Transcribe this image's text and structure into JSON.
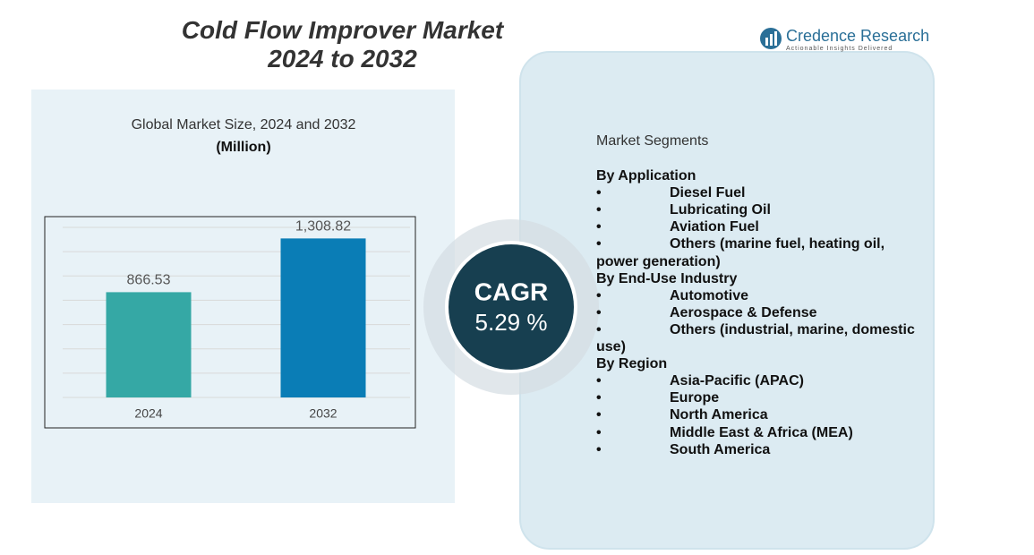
{
  "header": {
    "title_line1": "Cold Flow Improver Market",
    "title_line2": "2024 to 2032",
    "logo_name": "Credence Research",
    "logo_tagline": "Actionable Insights Delivered"
  },
  "chart_data": {
    "type": "bar",
    "title": "Global Market Size,  2024 and 2032",
    "subtitle": "(Million)",
    "categories": [
      "2024",
      "2032"
    ],
    "values": [
      866.53,
      1308.82
    ],
    "value_labels": [
      "866.53",
      "1,308.82"
    ],
    "colors": [
      "#35a8a5",
      "#0a7db6"
    ],
    "ylim": [
      0,
      1400
    ],
    "yticks": [
      0,
      200,
      400,
      600,
      800,
      1000,
      1200,
      1400
    ],
    "grid": true
  },
  "cagr": {
    "label": "CAGR",
    "value": "5.29 %"
  },
  "segments": {
    "title": "Market Segments",
    "bullet": "•",
    "groups": [
      {
        "heading": "By Application",
        "items": [
          "Diesel Fuel",
          "Lubricating Oil",
          "Aviation Fuel",
          "Others (marine fuel, heating oil, power generation)"
        ]
      },
      {
        "heading": "By End-Use Industry",
        "items": [
          "Automotive",
          "Aerospace & Defense",
          "Others (industrial, marine, domestic use)"
        ]
      },
      {
        "heading": "By Region",
        "items": [
          "Asia-Pacific (APAC)",
          "Europe",
          "North America",
          "Middle East & Africa (MEA)",
          "South America"
        ]
      }
    ]
  }
}
